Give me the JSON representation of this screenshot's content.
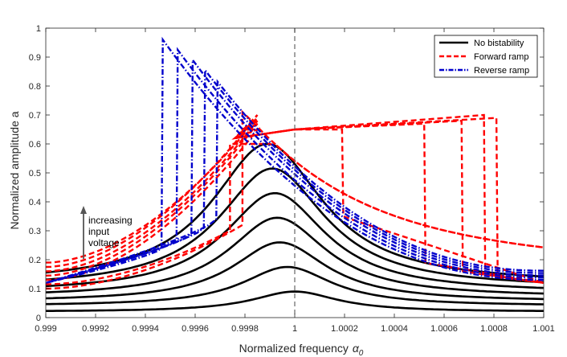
{
  "chart_data": {
    "type": "line",
    "title": "",
    "xlabel": "Normalized frequency",
    "xlabel_symbol": "α",
    "xlabel_subscript": "0",
    "ylabel": "Normalized amplitude a",
    "xlim": [
      0.999,
      1.001
    ],
    "ylim": [
      0,
      1
    ],
    "x_ticks": [
      "0.999",
      "0.9992",
      "0.9994",
      "0.9996",
      "0.9998",
      "1",
      "1.0002",
      "1.0004",
      "1.0006",
      "1.0008",
      "1.001"
    ],
    "y_ticks": [
      "0",
      "0.1",
      "0.2",
      "0.3",
      "0.4",
      "0.5",
      "0.6",
      "0.7",
      "0.8",
      "0.9",
      "1"
    ],
    "grid": false,
    "reference_line_x": 1.0,
    "legend": {
      "placement": "top-right",
      "entries": [
        {
          "label": "No bistability",
          "color": "#000000",
          "style": "solid"
        },
        {
          "label": "Forward ramp",
          "color": "#ff0000",
          "style": "dashed"
        },
        {
          "label": "Reverse ramp",
          "color": "#0000cc",
          "style": "dashdot"
        }
      ]
    },
    "annotation": {
      "lines": [
        "increasing",
        "input",
        "voltage"
      ],
      "arrow": "up"
    },
    "no_bistability_curves": [
      {
        "name": "No bistability 1",
        "peak_x": 1.0,
        "peak_y": 0.09,
        "base_y": 0.02
      },
      {
        "name": "No bistability 2",
        "peak_x": 0.99997,
        "peak_y": 0.175,
        "base_y": 0.04
      },
      {
        "name": "No bistability 3",
        "peak_x": 0.99994,
        "peak_y": 0.26,
        "base_y": 0.055
      },
      {
        "name": "No bistability 4",
        "peak_x": 0.99993,
        "peak_y": 0.345,
        "base_y": 0.07
      },
      {
        "name": "No bistability 5",
        "peak_x": 0.99992,
        "peak_y": 0.43,
        "base_y": 0.085
      },
      {
        "name": "No bistability 6",
        "peak_x": 0.99991,
        "peak_y": 0.515,
        "base_y": 0.1
      },
      {
        "name": "No bistability 7",
        "peak_x": 0.99989,
        "peak_y": 0.6,
        "base_y": 0.115
      }
    ],
    "forward_ramp_curves": [
      {
        "name": "Forward ramp 1",
        "jump_x": 0.99979,
        "from_y": 0.32,
        "to_y": 0.71,
        "end_x": 0.99983
      },
      {
        "name": "Forward ramp 2",
        "jump_x": 0.99974,
        "from_y": 0.3,
        "to_y": 0.6,
        "end_x": 1.00003
      },
      {
        "name": "Forward ramp 3",
        "jump_x": 1.00019,
        "from_y": 0.65,
        "to_y": 0.35,
        "end_x": 1.001
      },
      {
        "name": "Forward ramp 4",
        "jump_x": 1.00052,
        "from_y": 0.67,
        "to_y": 0.19,
        "end_x": 1.001
      },
      {
        "name": "Forward ramp 5",
        "jump_x": 1.00067,
        "from_y": 0.68,
        "to_y": 0.16,
        "end_x": 1.001
      },
      {
        "name": "Forward ramp 6",
        "jump_x": 1.00076,
        "from_y": 0.7,
        "to_y": 0.15,
        "end_x": 1.001
      },
      {
        "name": "Forward ramp 7",
        "jump_x": 1.00081,
        "from_y": 0.69,
        "to_y": 0.14,
        "end_x": 1.001
      }
    ],
    "reverse_ramp_curves": [
      {
        "name": "Reverse ramp 1",
        "top_x": 0.99947,
        "top_y": 0.96,
        "bottom_y": 0.24
      },
      {
        "name": "Reverse ramp 2",
        "top_x": 0.99953,
        "top_y": 0.925,
        "bottom_y": 0.27
      },
      {
        "name": "Reverse ramp 3",
        "top_x": 0.99959,
        "top_y": 0.89,
        "bottom_y": 0.29
      },
      {
        "name": "Reverse ramp 4",
        "top_x": 0.99964,
        "top_y": 0.855,
        "bottom_y": 0.31
      },
      {
        "name": "Reverse ramp 5",
        "top_x": 0.99969,
        "top_y": 0.815,
        "bottom_y": 0.34
      }
    ]
  }
}
